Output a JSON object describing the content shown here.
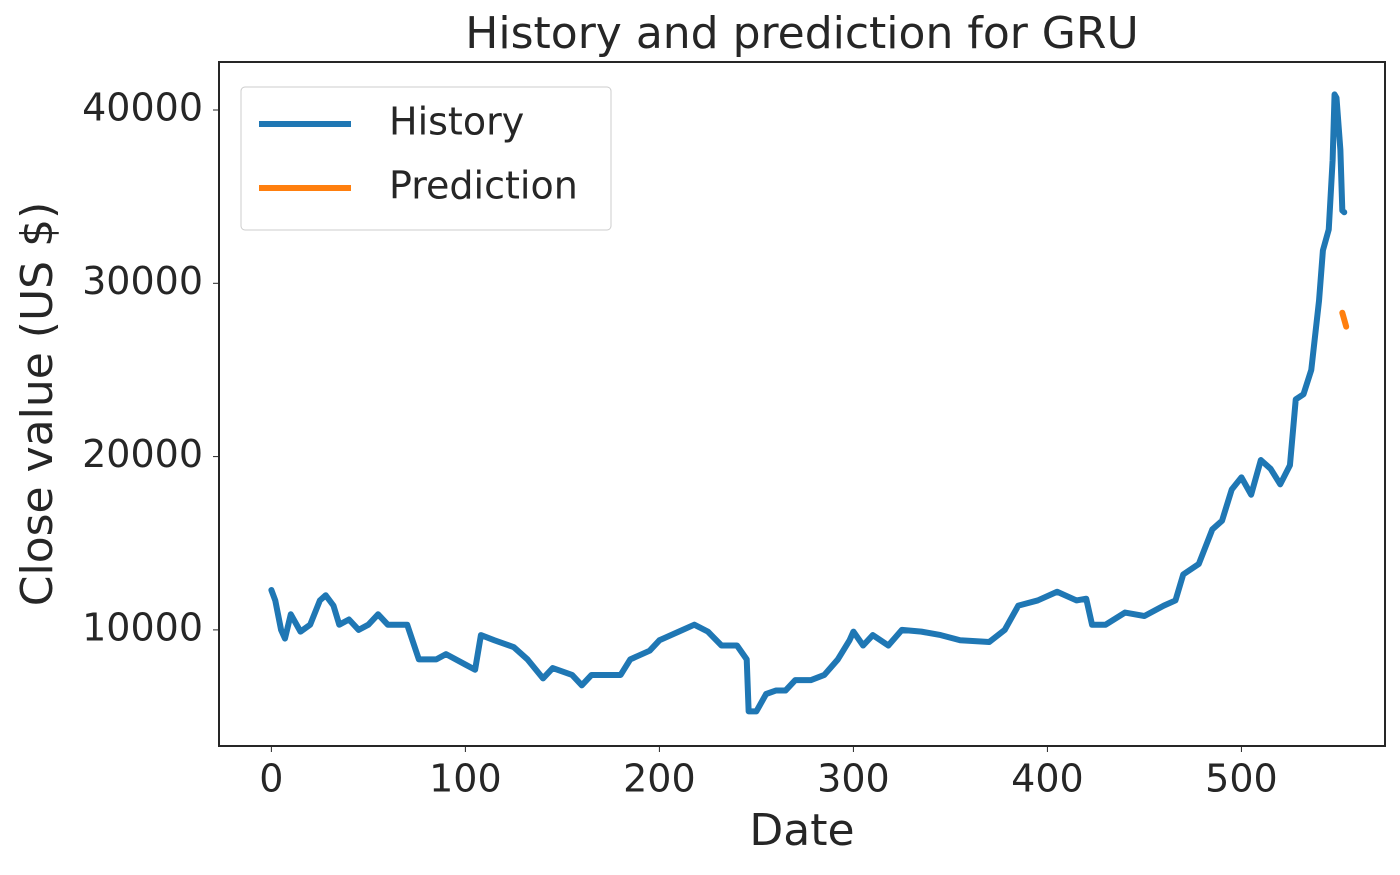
{
  "chart_data": {
    "type": "line",
    "title": "History and prediction for GRU",
    "xlabel": "Date",
    "ylabel": "Close value (US $)",
    "xlim": [
      -27,
      574
    ],
    "xticks": [
      0,
      100,
      200,
      300,
      400,
      500
    ],
    "ylim": [
      3300,
      42770
    ],
    "yticks": [
      10000,
      20000,
      30000,
      40000
    ],
    "grid": false,
    "legend": "upper left",
    "series": [
      {
        "name": "History",
        "color": "#1f77b4",
        "x": [
          0,
          2,
          5,
          7,
          10,
          15,
          20,
          25,
          28,
          32,
          35,
          40,
          45,
          50,
          55,
          60,
          70,
          76,
          85,
          90,
          100,
          105,
          108,
          115,
          125,
          132,
          140,
          145,
          155,
          160,
          165,
          175,
          180,
          185,
          195,
          200,
          210,
          218,
          225,
          232,
          240,
          245,
          246,
          250,
          255,
          260,
          265,
          270,
          278,
          285,
          292,
          298,
          300,
          305,
          310,
          318,
          325,
          335,
          345,
          355,
          370,
          378,
          385,
          395,
          405,
          415,
          420,
          423,
          430,
          440,
          450,
          460,
          466,
          470,
          478,
          485,
          490,
          495,
          500,
          505,
          510,
          515,
          520,
          525,
          528,
          532,
          536,
          540,
          542,
          545,
          547,
          548,
          549,
          551,
          552,
          553
        ],
        "values": [
          12300,
          11700,
          10000,
          9500,
          10900,
          9900,
          10300,
          11700,
          12000,
          11400,
          10300,
          10600,
          10000,
          10300,
          10900,
          10300,
          10300,
          8300,
          8300,
          8600,
          8000,
          7700,
          9700,
          9400,
          9000,
          8300,
          7200,
          7800,
          7400,
          6800,
          7400,
          7400,
          7400,
          8300,
          8800,
          9400,
          9900,
          10300,
          9900,
          9100,
          9100,
          8300,
          5300,
          5300,
          6300,
          6500,
          6500,
          7100,
          7100,
          7400,
          8300,
          9400,
          9900,
          9100,
          9700,
          9100,
          10000,
          9900,
          9700,
          9400,
          9300,
          10000,
          11400,
          11700,
          12200,
          11700,
          11800,
          10300,
          10300,
          11000,
          10800,
          11400,
          11700,
          13200,
          13800,
          15800,
          16300,
          18100,
          18800,
          17800,
          19800,
          19300,
          18400,
          19500,
          23300,
          23600,
          25000,
          29000,
          31900,
          33100,
          37100,
          40900,
          40700,
          37700,
          34200,
          34100
        ]
      },
      {
        "name": "Prediction",
        "color": "#ff7f0e",
        "x": [
          552,
          553,
          554
        ],
        "values": [
          28300,
          27900,
          27500
        ]
      }
    ]
  }
}
